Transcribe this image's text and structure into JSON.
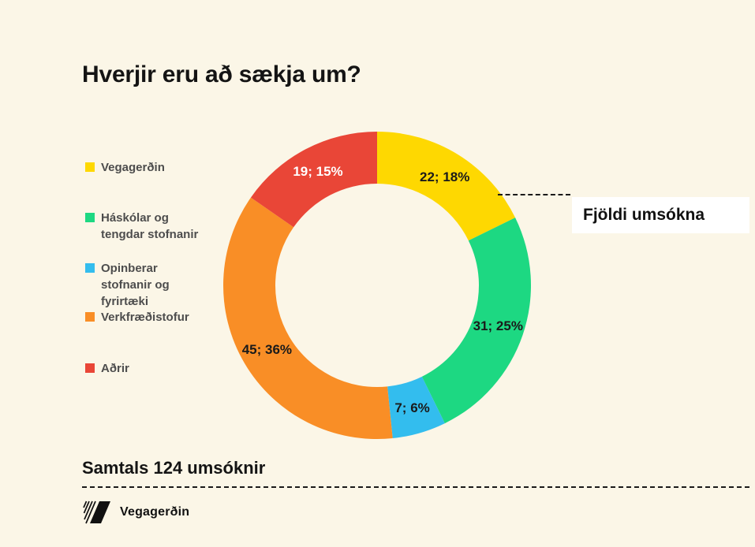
{
  "page": {
    "background": "#FBF6E7"
  },
  "title": "Hverjir eru að sækja um?",
  "legend": {
    "items": [
      {
        "label": "Vegagerðin",
        "color": "#FED801"
      },
      {
        "label": "Háskólar og tengdar stofnanir",
        "color": "#1DD882"
      },
      {
        "label": "Opinberar stofnanir og fyrirtæki",
        "color": "#33BDEE"
      },
      {
        "label": "Verkfræðistofur",
        "color": "#F98E26"
      },
      {
        "label": "Aðrir",
        "color": "#E94637"
      }
    ]
  },
  "callout": {
    "label": "Fjöldi umsókna"
  },
  "total_label": "Samtals 124 umsóknir",
  "footer": {
    "brand": "Vegagerðin"
  },
  "chart_data": {
    "type": "pie",
    "subtype": "donut",
    "title": "Hverjir eru að sækja um?",
    "categories": [
      "Vegagerðin",
      "Háskólar og tengdar stofnanir",
      "Opinberar stofnanir og fyrirtæki",
      "Verkfræðistofur",
      "Aðrir"
    ],
    "values": [
      22,
      31,
      7,
      45,
      19
    ],
    "percent_labels": [
      "18%",
      "25%",
      "6%",
      "36%",
      "15%"
    ],
    "slice_labels": [
      "22; 18%",
      "31; 25%",
      "7; 6%",
      "45; 36%",
      "19; 15%"
    ],
    "colors": [
      "#FED801",
      "#1DD882",
      "#33BDEE",
      "#F98E26",
      "#E94637"
    ],
    "label_text_colors": [
      "#1a1a1a",
      "#1a1a1a",
      "#1a1a1a",
      "#1a1a1a",
      "#ffffff"
    ],
    "total": 124,
    "start_angle_deg": 0,
    "direction": "clockwise",
    "donut_hole_ratio": 0.66,
    "legend_position": "left",
    "annotation": "Fjöldi umsókna",
    "footnote": "Samtals 124 umsóknir"
  }
}
